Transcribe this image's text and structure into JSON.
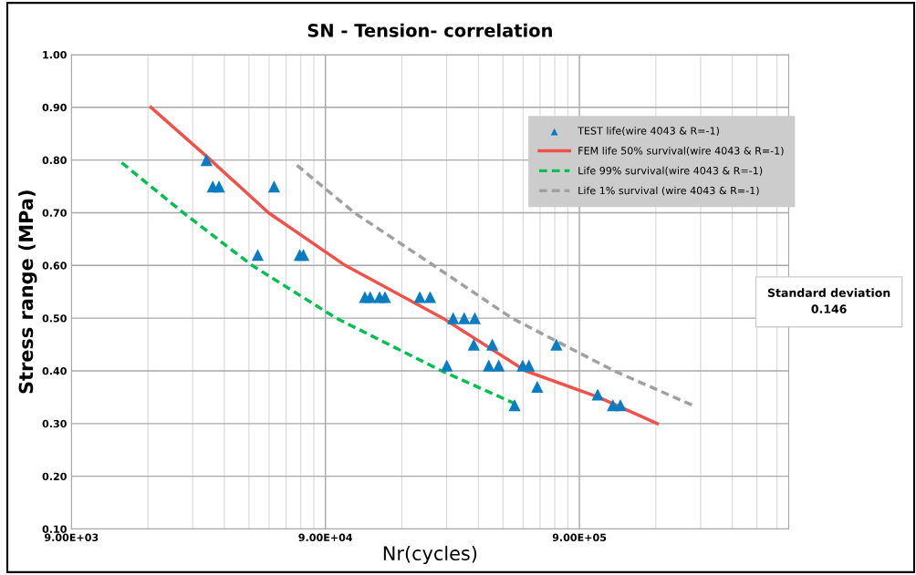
{
  "chart_data": {
    "type": "scatter",
    "title": "SN - Tension- correlation",
    "xlabel": "Nr(cycles)",
    "ylabel": "Stress range (MPa)",
    "log": "x",
    "grid": true,
    "legend": "top right",
    "xlim": [
      9000,
      6000000
    ],
    "xticks": [
      {
        "value": 9000,
        "label": "9.00E+03"
      },
      {
        "value": 90000,
        "label": "9.00E+04"
      },
      {
        "value": 900000,
        "label": "9.00E+05"
      }
    ],
    "ylim": [
      0.1,
      1.0
    ],
    "yticks": [
      {
        "value": 0.1,
        "label": "0.10"
      },
      {
        "value": 0.2,
        "label": "0.20"
      },
      {
        "value": 0.3,
        "label": "0.30"
      },
      {
        "value": 0.4,
        "label": "0.40"
      },
      {
        "value": 0.5,
        "label": "0.50"
      },
      {
        "value": 0.6,
        "label": "0.60"
      },
      {
        "value": 0.7,
        "label": "0.70"
      },
      {
        "value": 0.8,
        "label": "0.80"
      },
      {
        "value": 0.9,
        "label": "0.90"
      },
      {
        "value": 1.0,
        "label": "1.00"
      }
    ],
    "annotations": [
      "Standard deviation\n0.146"
    ],
    "series": [
      {
        "name": "TEST life(wire 4043 & R=-1)",
        "marker": "triangle",
        "color": "#0a7cc1",
        "x": [
          30600,
          32400,
          34300,
          56500,
          48700,
          71300,
          73700,
          128700,
          135000,
          147000,
          154500,
          211700,
          232500,
          286500,
          316600,
          348700,
          345400,
          408600,
          270400,
          395700,
          433000,
          538000,
          569400,
          730500,
          614000,
          500000,
          1062000,
          1219000,
          1305000
        ],
        "values": [
          0.8,
          0.75,
          0.75,
          0.75,
          0.62,
          0.62,
          0.62,
          0.54,
          0.54,
          0.54,
          0.54,
          0.54,
          0.54,
          0.5,
          0.5,
          0.5,
          0.45,
          0.45,
          0.41,
          0.41,
          0.41,
          0.41,
          0.41,
          0.45,
          0.37,
          0.335,
          0.355,
          0.335,
          0.335
        ]
      },
      {
        "name": "FEM life 50% survival(wire 4043 & R=-1)",
        "type": "line",
        "line_style": "solid",
        "color": "#f0524b",
        "x": [
          18500,
          31800,
          53700,
          107800,
          261000,
          552600,
          1070000,
          1825000
        ],
        "values": [
          0.9,
          0.8,
          0.7,
          0.6,
          0.5,
          0.4,
          0.35,
          0.3
        ]
      },
      {
        "name": "Life 99% survival(wire 4043 & R=-1)",
        "type": "line",
        "line_style": "dashed",
        "color": "#00c050",
        "x": [
          14200,
          24800,
          46300,
          99300,
          258000,
          501000
        ],
        "values": [
          0.795,
          0.7,
          0.6,
          0.5,
          0.4,
          0.338
        ]
      },
      {
        "name": "Life 1% survival (wire 4043 & R=-1)",
        "type": "line",
        "line_style": "dashed",
        "color": "#a0a0a0",
        "x": [
          69500,
          117000,
          240000,
          488000,
          1233000,
          2500000
        ],
        "values": [
          0.79,
          0.7,
          0.6,
          0.5,
          0.4,
          0.335
        ]
      }
    ]
  }
}
